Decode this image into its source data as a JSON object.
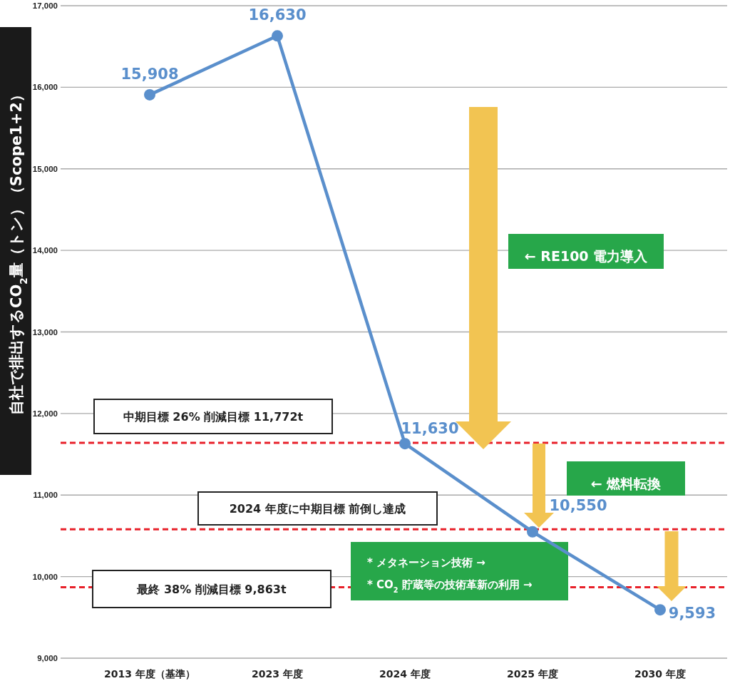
{
  "chart_data": {
    "type": "line",
    "ylabel": "自社で排出するCO$_{2}$量（トン）（Scope1+2）",
    "categories": [
      "2013 年度（基準）",
      "2023 年度",
      "2024 年度",
      "2025 年度",
      "2030 年度"
    ],
    "series": [
      {
        "color": "#5a8fcc",
        "values": [
          15908,
          16630,
          11630,
          10550,
          9593
        ],
        "value_labels": [
          "15,908",
          "16,630",
          "11,630",
          "10,550",
          "9,593"
        ]
      }
    ],
    "ylim": [
      9000,
      17000
    ],
    "yticks": [
      {
        "value": 9000,
        "label": "9,000"
      },
      {
        "value": 10000,
        "label": "10,000"
      },
      {
        "value": 11000,
        "label": "11,000"
      },
      {
        "value": 12000,
        "label": "12,000"
      },
      {
        "value": 13000,
        "label": "13,000"
      },
      {
        "value": 14000,
        "label": "14,000"
      },
      {
        "value": 15000,
        "label": "15,000"
      },
      {
        "value": 16000,
        "label": "16,000"
      },
      {
        "value": 17000,
        "label": "17,000"
      }
    ],
    "grid": "y",
    "marker": "circle",
    "line_style": "solid",
    "ref_lines": [
      {
        "axis": "y",
        "value": 11640,
        "label": "中期目標 26% 削減目標 11,772t",
        "color": "#e8212a",
        "line_style": "dashed"
      },
      {
        "axis": "y",
        "value": 10580,
        "label": "2024 年度に中期目標 前倒し達成",
        "color": "#e8212a",
        "line_style": "dashed"
      },
      {
        "axis": "y",
        "value": 9870,
        "label": "最終 38% 削減目標 9,863t",
        "color": "#e8212a",
        "line_style": "dashed"
      }
    ],
    "annotations": [
      "← RE100 電力導入",
      "← 燃料転換",
      "* メタネーション技術 →",
      "* CO$_{2}$ 貯蔵等の技術革新の利用 →"
    ]
  }
}
